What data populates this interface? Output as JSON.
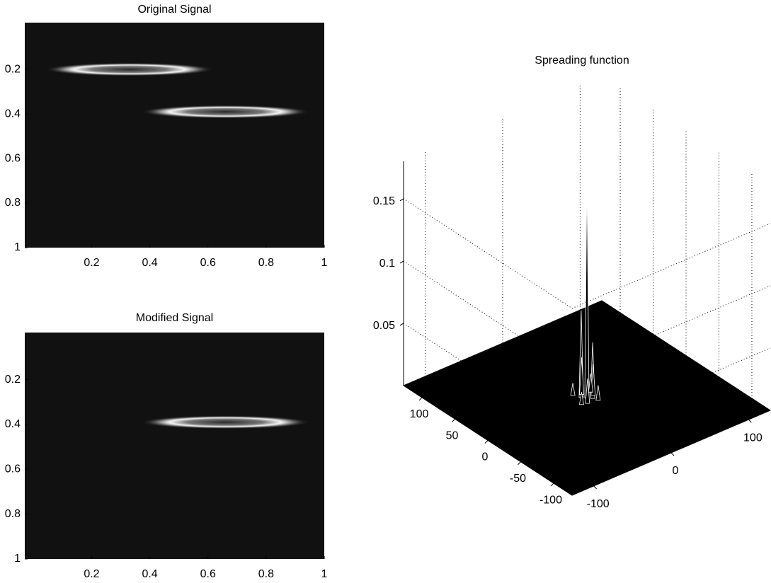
{
  "chart_data": [
    {
      "type": "image",
      "title": "Original Signal",
      "colormap": "gray",
      "background": "#111111",
      "xlim": [
        -0.03,
        1
      ],
      "ylim": [
        -0.01,
        1
      ],
      "ydir": "reverse",
      "xticks": [
        0.2,
        0.4,
        0.6,
        0.8,
        1
      ],
      "yticks": [
        0.2,
        0.4,
        0.6,
        0.8,
        1
      ],
      "blobs": {
        "x": [
          0.33,
          0.66
        ],
        "y": [
          0.2,
          0.39
        ],
        "width": [
          0.58,
          0.58
        ],
        "height": [
          0.06,
          0.06
        ]
      }
    },
    {
      "type": "image",
      "title": "Modified Signal",
      "colormap": "gray",
      "background": "#111111",
      "xlim": [
        -0.03,
        1
      ],
      "ylim": [
        -0.01,
        1
      ],
      "ydir": "reverse",
      "xticks": [
        0.2,
        0.4,
        0.6,
        0.8,
        1
      ],
      "yticks": [
        0.2,
        0.4,
        0.6,
        0.8,
        1
      ],
      "blobs": {
        "x": [
          0.66
        ],
        "y": [
          0.39
        ],
        "width": [
          0.58
        ],
        "height": [
          0.06
        ]
      }
    },
    {
      "type": "surface",
      "title": "Spreading function",
      "color": "#000000",
      "xlim": [
        -128,
        128
      ],
      "ylim": [
        -128,
        128
      ],
      "zlim": [
        0,
        0.18
      ],
      "xticks": [
        -100,
        -50,
        0,
        50,
        100
      ],
      "yticks": [
        -100,
        0,
        100
      ],
      "zticks": [
        0.05,
        0.1,
        0.15
      ],
      "grid": true,
      "points": {
        "x": [
          0,
          4,
          -4,
          8,
          0,
          -8,
          6,
          -10,
          12,
          -6
        ],
        "y": [
          0,
          -4,
          4,
          0,
          8,
          -6,
          10,
          6,
          -8,
          -12
        ],
        "z": [
          0.175,
          0.07,
          0.045,
          0.03,
          0.025,
          0.02,
          0.015,
          0.012,
          0.01,
          0.01
        ]
      }
    }
  ]
}
